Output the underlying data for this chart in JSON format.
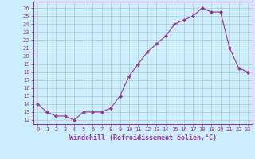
{
  "hours": [
    0,
    1,
    2,
    3,
    4,
    5,
    6,
    7,
    8,
    9,
    10,
    11,
    12,
    13,
    14,
    15,
    16,
    17,
    18,
    19,
    20,
    21,
    22,
    23
  ],
  "values": [
    14,
    13,
    12.5,
    12.5,
    12,
    13,
    13,
    13,
    13.5,
    15,
    17.5,
    19,
    20.5,
    21.5,
    22.5,
    24,
    24.5,
    25,
    26,
    25.5,
    25.5,
    21,
    18.5,
    18
  ],
  "line_color": "#993399",
  "marker": "D",
  "marker_size": 2,
  "bg_color": "#cceeff",
  "grid_color": "#aacccc",
  "xlabel": "Windchill (Refroidissement éolien,°C)",
  "ylabel_ticks": [
    12,
    13,
    14,
    15,
    16,
    17,
    18,
    19,
    20,
    21,
    22,
    23,
    24,
    25,
    26
  ],
  "ylim": [
    11.5,
    26.8
  ],
  "xlim": [
    -0.5,
    23.5
  ],
  "xticks": [
    0,
    1,
    2,
    3,
    4,
    5,
    6,
    7,
    8,
    9,
    10,
    11,
    12,
    13,
    14,
    15,
    16,
    17,
    18,
    19,
    20,
    21,
    22,
    23
  ],
  "axis_label_color": "#993399",
  "tick_color": "#993399",
  "spine_color": "#993399",
  "tick_fontsize": 5,
  "xlabel_fontsize": 6
}
